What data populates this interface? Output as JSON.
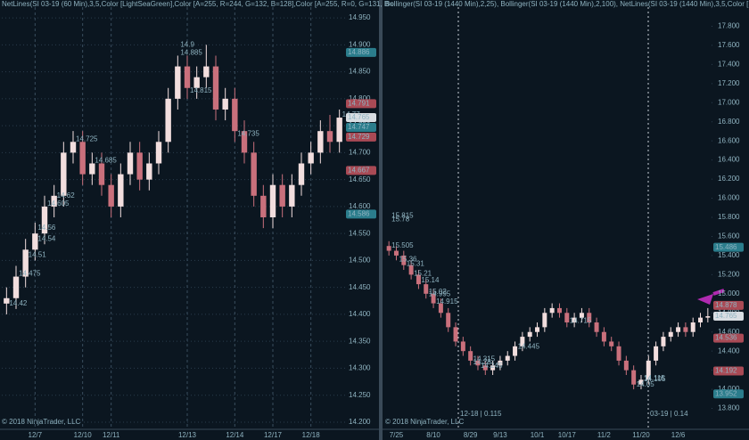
{
  "chart_data": [
    {
      "type": "candlestick",
      "title": "NetLines(SI 03-19 (60 Min),3,5,Color [LightSeaGreen],Color [A=255, R=244, G=132, B=128],Color [A=255, R=0, G=131, B=",
      "watermark": "© 2018 NinjaTrader, LLC",
      "categories": [
        null,
        null,
        null,
        "12/7",
        null,
        null,
        null,
        null,
        "12/10",
        null,
        null,
        "12/11",
        null,
        null,
        null,
        null,
        null,
        null,
        null,
        "12/13",
        null,
        null,
        null,
        null,
        "12/14",
        null,
        null,
        null,
        "12/17",
        null,
        null,
        null,
        "12/18",
        null,
        null,
        null
      ],
      "open": [
        14.42,
        14.43,
        14.47,
        14.52,
        14.55,
        14.6,
        14.62,
        14.7,
        14.72,
        14.66,
        14.68,
        14.64,
        14.6,
        14.66,
        14.7,
        14.65,
        14.68,
        14.72,
        14.8,
        14.86,
        14.82,
        14.84,
        14.86,
        14.78,
        14.8,
        14.74,
        14.7,
        14.62,
        14.58,
        14.64,
        14.6,
        14.64,
        14.68,
        14.7,
        14.74,
        14.72
      ],
      "high": [
        14.45,
        14.49,
        14.54,
        14.57,
        14.62,
        14.64,
        14.72,
        14.74,
        14.74,
        14.7,
        14.7,
        14.66,
        14.68,
        14.72,
        14.72,
        14.7,
        14.74,
        14.82,
        14.88,
        14.88,
        14.86,
        14.9,
        14.88,
        14.82,
        14.82,
        14.76,
        14.72,
        14.64,
        14.66,
        14.66,
        14.66,
        14.7,
        14.72,
        14.76,
        14.77,
        14.78
      ],
      "low": [
        14.4,
        14.41,
        14.45,
        14.5,
        14.53,
        14.58,
        14.6,
        14.68,
        14.64,
        14.64,
        14.62,
        14.58,
        14.58,
        14.64,
        14.63,
        14.63,
        14.66,
        14.7,
        14.78,
        14.8,
        14.8,
        14.82,
        14.76,
        14.76,
        14.72,
        14.68,
        14.6,
        14.56,
        14.56,
        14.58,
        14.58,
        14.62,
        14.66,
        14.68,
        14.7,
        14.7
      ],
      "close": [
        14.43,
        14.47,
        14.52,
        14.55,
        14.6,
        14.62,
        14.7,
        14.72,
        14.66,
        14.68,
        14.64,
        14.6,
        14.66,
        14.7,
        14.65,
        14.68,
        14.72,
        14.8,
        14.86,
        14.82,
        14.84,
        14.86,
        14.78,
        14.8,
        14.74,
        14.7,
        14.62,
        14.58,
        14.64,
        14.6,
        14.64,
        14.68,
        14.7,
        14.74,
        14.72,
        14.765
      ],
      "levels": [
        14.9,
        14.885,
        14.815,
        14.735,
        14.725,
        14.685,
        14.62,
        14.605,
        14.56,
        14.54,
        14.51,
        14.475,
        14.42,
        14.77
      ],
      "price_markers": [
        {
          "value": 14.886,
          "color": "#2b7d8c"
        },
        {
          "value": 14.791,
          "color": "#a94a55"
        },
        {
          "value": 14.765,
          "color": "#d8dde2"
        },
        {
          "value": 14.747,
          "color": "#2b7d8c"
        },
        {
          "value": 14.729,
          "color": "#a94a55"
        },
        {
          "value": 14.667,
          "color": "#a94a55"
        },
        {
          "value": 14.586,
          "color": "#2b7d8c"
        }
      ],
      "ylim": [
        14.19,
        14.97
      ],
      "yticks": [
        {
          "value": 14.2,
          "label": "14.200"
        },
        {
          "value": 14.25,
          "label": "14.250"
        },
        {
          "value": 14.3,
          "label": "14.300"
        },
        {
          "value": 14.35,
          "label": "14.350"
        },
        {
          "value": 14.4,
          "label": "14.400"
        },
        {
          "value": 14.45,
          "label": "14.450"
        },
        {
          "value": 14.5,
          "label": "14.500"
        },
        {
          "value": 14.55,
          "label": "14.550"
        },
        {
          "value": 14.6,
          "label": "14.600"
        },
        {
          "value": 14.65,
          "label": "14.650"
        },
        {
          "value": 14.7,
          "label": "14.700"
        },
        {
          "value": 14.75,
          "label": "14.750"
        },
        {
          "value": 14.8,
          "label": "14.800"
        },
        {
          "value": 14.85,
          "label": "14.850"
        },
        {
          "value": 14.9,
          "label": "14.900"
        },
        {
          "value": 14.95,
          "label": "14.950"
        }
      ],
      "grid": true
    },
    {
      "type": "candlestick",
      "title": "Bollinger(SI 03-19 (1440 Min),2,25), Bollinger(SI 03-19 (1440 Min),2,100), NetLines(SI 03-19 (1440 Min),3,5,Color [LightSe",
      "watermark": "© 2018 NinjaTrader, LLC",
      "annotations": [
        "12-18 | 0.115",
        "03-19 | 0.14"
      ],
      "categories": [
        null,
        "7/25",
        null,
        null,
        null,
        null,
        "8/10",
        null,
        null,
        null,
        null,
        "8/29",
        null,
        null,
        null,
        "9/13",
        null,
        null,
        null,
        null,
        "10/1",
        null,
        null,
        null,
        "10/17",
        null,
        null,
        null,
        null,
        "11/2",
        null,
        null,
        null,
        null,
        "11/20",
        null,
        null,
        null,
        null,
        "12/6",
        null,
        null,
        null,
        null
      ],
      "open": [
        15.5,
        15.45,
        15.4,
        15.3,
        15.2,
        15.1,
        15.0,
        14.9,
        14.8,
        14.65,
        14.5,
        14.4,
        14.3,
        14.25,
        14.2,
        14.25,
        14.3,
        14.35,
        14.45,
        14.55,
        14.6,
        14.65,
        14.8,
        14.85,
        14.8,
        14.7,
        14.75,
        14.8,
        14.7,
        14.6,
        14.5,
        14.45,
        14.3,
        14.2,
        14.05,
        14.1,
        14.3,
        14.45,
        14.55,
        14.6,
        14.65,
        14.6,
        14.7,
        14.75
      ],
      "high": [
        15.55,
        15.5,
        15.45,
        15.35,
        15.25,
        15.15,
        15.05,
        14.95,
        14.85,
        14.7,
        14.55,
        14.45,
        14.35,
        14.3,
        14.3,
        14.35,
        14.4,
        14.5,
        14.6,
        14.65,
        14.7,
        14.85,
        14.9,
        14.9,
        14.85,
        14.8,
        14.85,
        14.85,
        14.75,
        14.65,
        14.55,
        14.5,
        14.35,
        14.25,
        14.15,
        14.35,
        14.5,
        14.6,
        14.65,
        14.7,
        14.7,
        14.75,
        14.8,
        14.85
      ],
      "low": [
        15.4,
        15.35,
        15.25,
        15.15,
        15.05,
        14.95,
        14.85,
        14.75,
        14.6,
        14.45,
        14.35,
        14.25,
        14.2,
        14.15,
        14.15,
        14.2,
        14.25,
        14.3,
        14.4,
        14.5,
        14.55,
        14.6,
        14.75,
        14.75,
        14.65,
        14.65,
        14.7,
        14.65,
        14.55,
        14.45,
        14.4,
        14.25,
        14.15,
        14.0,
        14.0,
        14.05,
        14.25,
        14.4,
        14.5,
        14.55,
        14.55,
        14.55,
        14.65,
        14.7
      ],
      "close": [
        15.45,
        15.4,
        15.3,
        15.2,
        15.1,
        15.0,
        14.9,
        14.8,
        14.65,
        14.5,
        14.4,
        14.3,
        14.25,
        14.2,
        14.25,
        14.3,
        14.35,
        14.45,
        14.55,
        14.6,
        14.65,
        14.8,
        14.85,
        14.8,
        14.7,
        14.75,
        14.8,
        14.7,
        14.6,
        14.5,
        14.45,
        14.3,
        14.2,
        14.05,
        14.1,
        14.3,
        14.45,
        14.55,
        14.6,
        14.65,
        14.6,
        14.7,
        14.75,
        14.765
      ],
      "levels": [
        15.31,
        15.815,
        15.78,
        15.505,
        15.36,
        15.21,
        15.14,
        15.02,
        14.995,
        14.915,
        14.715,
        14.445,
        14.315,
        14.28,
        14.245,
        14.105,
        14.115,
        14.05
      ],
      "price_markers": [
        {
          "value": 15.486,
          "color": "#2b7d8c"
        },
        {
          "value": 14.878,
          "color": "#a94a55"
        },
        {
          "value": 14.765,
          "color": "#d8dde2"
        },
        {
          "value": 14.536,
          "color": "#a94a55"
        },
        {
          "value": 14.192,
          "color": "#a94a55"
        },
        {
          "value": 13.952,
          "color": "#2b7d8c"
        }
      ],
      "ylim": [
        13.6,
        18.0
      ],
      "yticks": [
        {
          "value": 13.8,
          "label": "13.800"
        },
        {
          "value": 14.0,
          "label": "14.000"
        },
        {
          "value": 14.2,
          "label": "14.200"
        },
        {
          "value": 14.4,
          "label": "14.400"
        },
        {
          "value": 14.6,
          "label": "14.600"
        },
        {
          "value": 14.8,
          "label": "14.800"
        },
        {
          "value": 15.0,
          "label": "15.000"
        },
        {
          "value": 15.2,
          "label": "15.200"
        },
        {
          "value": 15.4,
          "label": "15.400"
        },
        {
          "value": 15.6,
          "label": "15.600"
        },
        {
          "value": 15.8,
          "label": "15.800"
        },
        {
          "value": 16.0,
          "label": "16.000"
        },
        {
          "value": 16.2,
          "label": "16.200"
        },
        {
          "value": 16.4,
          "label": "16.400"
        },
        {
          "value": 16.6,
          "label": "16.600"
        },
        {
          "value": 16.8,
          "label": "16.800"
        },
        {
          "value": 17.0,
          "label": "17.000"
        },
        {
          "value": 17.2,
          "label": "17.200"
        },
        {
          "value": 17.4,
          "label": "17.400"
        },
        {
          "value": 17.6,
          "label": "17.600"
        },
        {
          "value": 17.8,
          "label": "17.800"
        }
      ],
      "grid": false
    }
  ]
}
